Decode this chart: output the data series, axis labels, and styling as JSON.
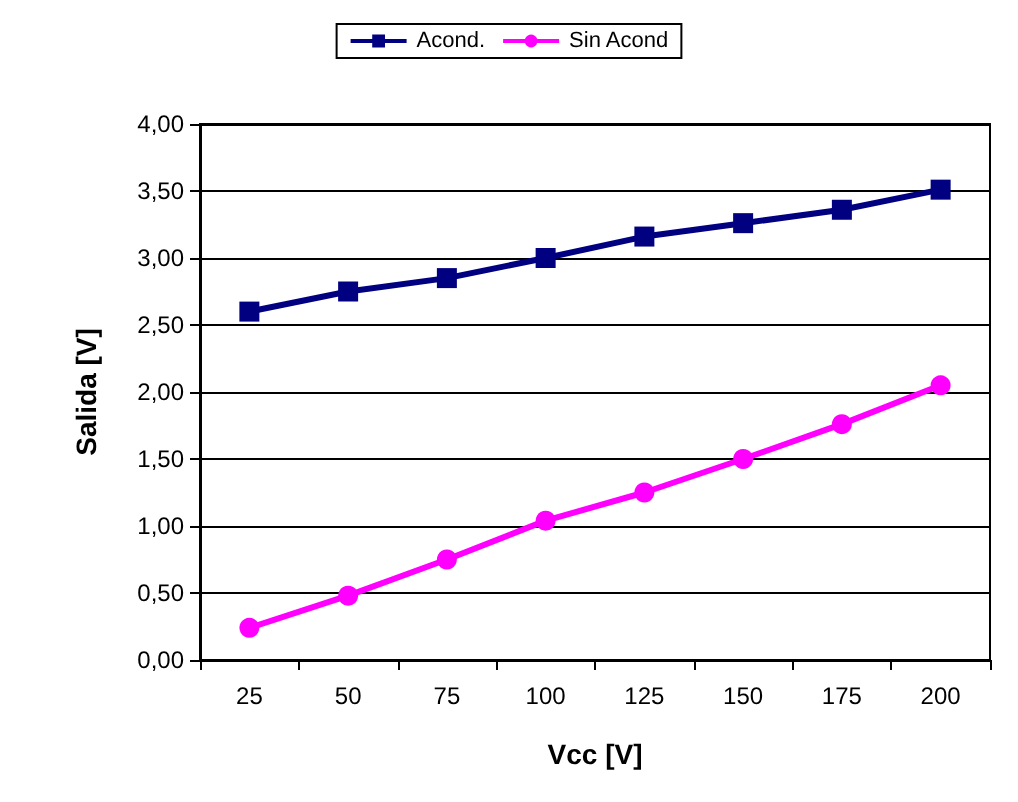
{
  "chart_data": {
    "type": "line",
    "xlabel": "Vcc [V]",
    "ylabel": "Salida [V]",
    "categories": [
      "25",
      "50",
      "75",
      "100",
      "125",
      "150",
      "175",
      "200"
    ],
    "series": [
      {
        "name": "Acond.",
        "color": "#000080",
        "marker": "square",
        "values": [
          2.6,
          2.75,
          2.85,
          3.0,
          3.16,
          3.26,
          3.36,
          3.51
        ]
      },
      {
        "name": "Sin Acond",
        "color": "#ff00ff",
        "marker": "circle",
        "values": [
          0.24,
          0.48,
          0.75,
          1.04,
          1.25,
          1.5,
          1.76,
          2.05
        ]
      }
    ],
    "ylim": [
      0,
      4
    ],
    "yticks": [
      {
        "value": 0,
        "label": "0,00"
      },
      {
        "value": 0.5,
        "label": "0,50"
      },
      {
        "value": 1,
        "label": "1,00"
      },
      {
        "value": 1.5,
        "label": "1,50"
      },
      {
        "value": 2,
        "label": "2,00"
      },
      {
        "value": 2.5,
        "label": "2,50"
      },
      {
        "value": 3,
        "label": "3,00"
      },
      {
        "value": 3.5,
        "label": "3,50"
      },
      {
        "value": 4,
        "label": "4,00"
      }
    ],
    "grid": "y",
    "legend": "top",
    "line_style": "solid"
  }
}
